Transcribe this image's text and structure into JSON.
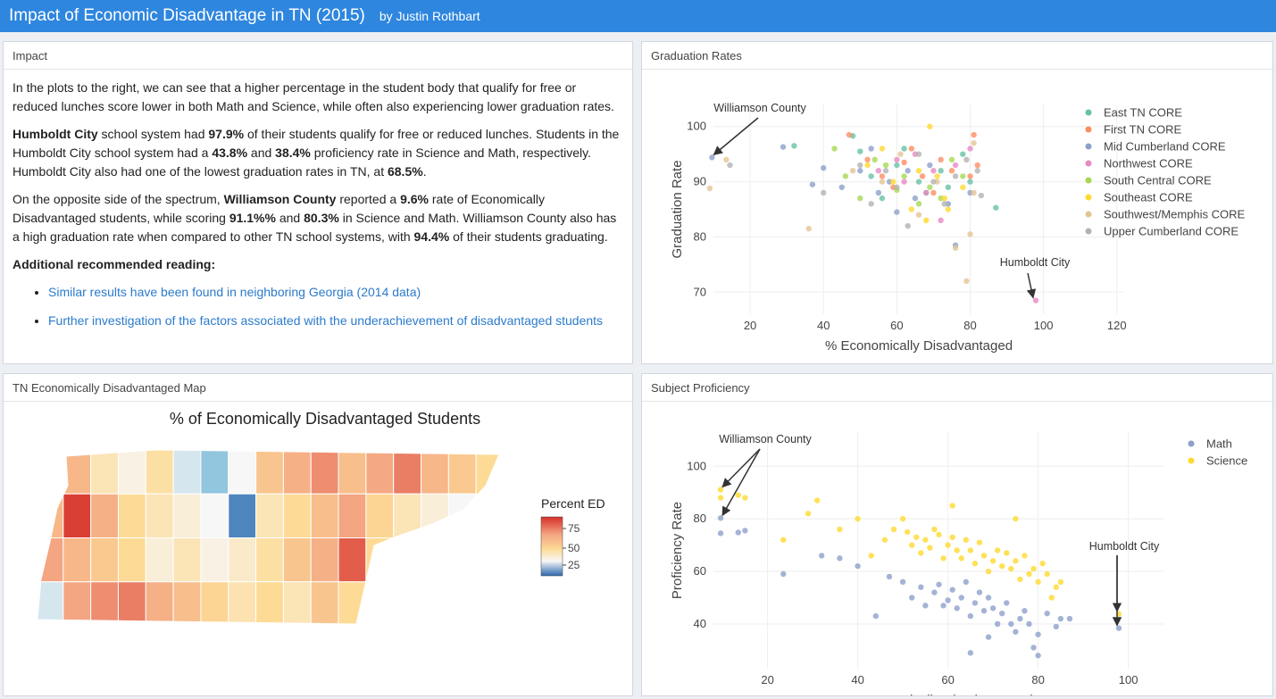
{
  "header": {
    "title": "Impact of Economic Disadvantage in TN (2015)",
    "author": "by Justin Rothbart"
  },
  "impact": {
    "title": "Impact",
    "p1": "In the plots to the right, we can see that a higher percentage in the student body that qualify for free or reduced lunches score lower in both Math and Science, while often also experiencing lower graduation rates.",
    "p2": [
      {
        "t": "Humboldt City",
        "b": true
      },
      {
        "t": " school system had ",
        "b": false
      },
      {
        "t": "97.9%",
        "b": true
      },
      {
        "t": " of their students qualify for free or reduced lunches. Students in the Humboldt City school system had a ",
        "b": false
      },
      {
        "t": "43.8%",
        "b": true
      },
      {
        "t": " and ",
        "b": false
      },
      {
        "t": "38.4%",
        "b": true
      },
      {
        "t": " proficiency rate in Science and Math, respectively. Humboldt City also had one of the lowest graduation rates in TN, at ",
        "b": false
      },
      {
        "t": "68.5%",
        "b": true
      },
      {
        "t": ".",
        "b": false
      }
    ],
    "p3": [
      {
        "t": "On the opposite side of the spectrum, ",
        "b": false
      },
      {
        "t": "Williamson County",
        "b": true
      },
      {
        "t": " reported a ",
        "b": false
      },
      {
        "t": "9.6%",
        "b": true
      },
      {
        "t": " rate of Economically Disadvantaged students, while scoring ",
        "b": false
      },
      {
        "t": "91.1%%",
        "b": true
      },
      {
        "t": " and ",
        "b": false
      },
      {
        "t": "80.3%",
        "b": true
      },
      {
        "t": " in Science and Math. Williamson County also has a high graduation rate when compared to other TN school systems, with ",
        "b": false
      },
      {
        "t": "94.4%",
        "b": true
      },
      {
        "t": " of their students graduating.",
        "b": false
      }
    ],
    "reading_title": "Additional recommended reading:",
    "links": [
      "Similar results have been found in neighboring Georgia (2014 data)",
      "Further investigation of the factors associated with the underachievement of disadvantaged students"
    ]
  },
  "grad": {
    "title": "Graduation Rates",
    "ann1": "Williamson County",
    "ann2": "Humboldt City"
  },
  "map": {
    "title": "TN Economically Disadvantaged Map",
    "chart_title": "% of Economically Disadvantaged Students",
    "legend_title": "Percent ED",
    "legend_ticks": [
      "75",
      "50",
      "25"
    ]
  },
  "prof": {
    "title": "Subject Proficiency",
    "ann1": "Williamson County",
    "ann2": "Humboldt City"
  },
  "chart_data": [
    {
      "type": "scatter",
      "xlabel": "% Economically Disadvantaged",
      "ylabel": "Graduation Rate",
      "xlim": [
        10,
        122
      ],
      "ylim": [
        66,
        104
      ],
      "xticks": [
        "20",
        "40",
        "60",
        "80",
        "100",
        "120"
      ],
      "yticks": [
        "70",
        "80",
        "90",
        "100"
      ],
      "grid": true,
      "legend_position": "right",
      "series": [
        {
          "name": "East TN CORE",
          "color": "#66c2a5",
          "points": [
            [
              32,
              96.5
            ],
            [
              48,
              98.3
            ],
            [
              50,
              95.5
            ],
            [
              53,
              91
            ],
            [
              56,
              87
            ],
            [
              60,
              93
            ],
            [
              62,
              96
            ],
            [
              66,
              90
            ],
            [
              68,
              88
            ],
            [
              72,
              92
            ],
            [
              74,
              89
            ],
            [
              78,
              95
            ],
            [
              80,
              90
            ],
            [
              87,
              85.3
            ]
          ]
        },
        {
          "name": "First TN CORE",
          "color": "#fc8d62",
          "points": [
            [
              47,
              98.5
            ],
            [
              52,
              94
            ],
            [
              56,
              91
            ],
            [
              59,
              89
            ],
            [
              62,
              93.5
            ],
            [
              64,
              96
            ],
            [
              67,
              91
            ],
            [
              70,
              88
            ],
            [
              72,
              94
            ],
            [
              75,
              92
            ],
            [
              80,
              91
            ],
            [
              81,
              98.5
            ],
            [
              82,
              93
            ]
          ]
        },
        {
          "name": "Mid Cumberland CORE",
          "color": "#8da0cb",
          "points": [
            [
              9.6,
              94.4
            ],
            [
              29,
              96.3
            ],
            [
              37,
              89.5
            ],
            [
              40,
              92.5
            ],
            [
              45,
              89
            ],
            [
              50,
              92
            ],
            [
              53,
              96
            ],
            [
              55,
              88
            ],
            [
              58,
              90
            ],
            [
              60,
              84.5
            ],
            [
              63,
              92
            ],
            [
              65,
              87
            ],
            [
              69,
              93
            ],
            [
              74,
              86
            ],
            [
              76,
              78.5
            ],
            [
              80,
              88
            ]
          ]
        },
        {
          "name": "Northwest CORE",
          "color": "#e78ac3",
          "points": [
            [
              55,
              92
            ],
            [
              60,
              94
            ],
            [
              62,
              90
            ],
            [
              65,
              95
            ],
            [
              68,
              88
            ],
            [
              70,
              92
            ],
            [
              72,
              83
            ],
            [
              76,
              93
            ],
            [
              80,
              96
            ],
            [
              97.9,
              68.5
            ]
          ]
        },
        {
          "name": "South Central CORE",
          "color": "#a6d854",
          "points": [
            [
              43,
              96
            ],
            [
              46,
              91
            ],
            [
              50,
              87
            ],
            [
              54,
              94
            ],
            [
              57,
              93
            ],
            [
              60,
              88.5
            ],
            [
              62,
              91
            ],
            [
              66,
              86
            ],
            [
              69,
              89
            ],
            [
              72,
              87
            ],
            [
              75,
              94
            ],
            [
              78,
              91
            ]
          ]
        },
        {
          "name": "Southeast CORE",
          "color": "#ffd92f",
          "points": [
            [
              52,
              93
            ],
            [
              56,
              96
            ],
            [
              59,
              90
            ],
            [
              64,
              85
            ],
            [
              66,
              92
            ],
            [
              68,
              83
            ],
            [
              69,
              100
            ],
            [
              71,
              91
            ],
            [
              73,
              87
            ],
            [
              74,
              85
            ],
            [
              78,
              89
            ]
          ]
        },
        {
          "name": "Southwest/Memphis CORE",
          "color": "#e5c494",
          "points": [
            [
              9,
              88.8
            ],
            [
              13.5,
              94
            ],
            [
              36,
              81.5
            ],
            [
              48,
              92
            ],
            [
              56,
              90
            ],
            [
              61,
              95
            ],
            [
              66,
              84
            ],
            [
              71,
              90
            ],
            [
              76,
              78
            ],
            [
              79,
              72
            ],
            [
              80,
              80.5
            ],
            [
              81,
              88
            ],
            [
              81,
              97
            ]
          ]
        },
        {
          "name": "Upper Cumberland CORE",
          "color": "#b3b3b3",
          "points": [
            [
              14.5,
              93
            ],
            [
              40,
              88
            ],
            [
              50,
              93
            ],
            [
              53,
              86
            ],
            [
              57,
              92
            ],
            [
              60,
              89
            ],
            [
              63,
              82
            ],
            [
              66,
              95
            ],
            [
              70,
              90
            ],
            [
              73,
              86
            ],
            [
              76,
              91
            ],
            [
              79,
              94
            ],
            [
              82,
              92
            ],
            [
              83,
              87.5
            ]
          ]
        }
      ]
    },
    {
      "type": "choropleth",
      "title": "% of Economically Disadvantaged Students",
      "legend_title": "Percent ED",
      "colorscale_ticks": [
        75,
        50,
        25
      ]
    },
    {
      "type": "scatter",
      "xlabel": "% Economically Disadvantaged",
      "ylabel": "Proficiency Rate",
      "xlim": [
        8,
        108
      ],
      "ylim": [
        23,
        113
      ],
      "xticks": [
        "20",
        "40",
        "60",
        "80",
        "100"
      ],
      "yticks": [
        "40",
        "60",
        "80",
        "100"
      ],
      "grid": true,
      "legend_position": "right",
      "series": [
        {
          "name": "Math",
          "color": "#8da0cb",
          "points": [
            [
              9.6,
              80.3
            ],
            [
              9.6,
              74.5
            ],
            [
              13.5,
              74.8
            ],
            [
              15,
              75.5
            ],
            [
              23.5,
              59
            ],
            [
              32,
              66
            ],
            [
              36,
              65
            ],
            [
              40,
              62
            ],
            [
              44,
              43
            ],
            [
              47,
              58
            ],
            [
              50,
              56
            ],
            [
              52,
              50
            ],
            [
              54,
              54
            ],
            [
              55,
              47
            ],
            [
              57,
              52
            ],
            [
              58,
              55
            ],
            [
              59,
              47
            ],
            [
              60,
              49
            ],
            [
              61,
              53
            ],
            [
              62,
              46
            ],
            [
              63,
              50
            ],
            [
              64,
              56
            ],
            [
              65,
              43
            ],
            [
              66,
              48
            ],
            [
              67,
              52
            ],
            [
              68,
              45
            ],
            [
              69,
              50
            ],
            [
              70,
              46
            ],
            [
              71,
              40
            ],
            [
              72,
              44
            ],
            [
              73,
              48
            ],
            [
              74,
              40
            ],
            [
              75,
              37
            ],
            [
              76,
              42
            ],
            [
              77,
              45
            ],
            [
              78,
              40
            ],
            [
              79,
              31
            ],
            [
              80,
              36
            ],
            [
              82,
              44
            ],
            [
              84,
              39
            ],
            [
              85,
              42
            ],
            [
              87,
              42
            ],
            [
              65,
              29
            ],
            [
              69,
              35
            ],
            [
              80,
              28
            ],
            [
              97.9,
              38.4
            ]
          ]
        },
        {
          "name": "Science",
          "color": "#ffd92f",
          "points": [
            [
              9.6,
              91.1
            ],
            [
              9.6,
              88
            ],
            [
              13.5,
              89
            ],
            [
              15,
              88
            ],
            [
              23.5,
              72
            ],
            [
              29,
              82
            ],
            [
              31,
              87
            ],
            [
              36,
              76
            ],
            [
              40,
              80
            ],
            [
              43,
              66
            ],
            [
              46,
              72
            ],
            [
              48,
              76
            ],
            [
              50,
              80
            ],
            [
              51,
              75
            ],
            [
              52,
              70
            ],
            [
              53,
              73
            ],
            [
              54,
              67
            ],
            [
              55,
              72
            ],
            [
              56,
              69
            ],
            [
              57,
              76
            ],
            [
              58,
              74
            ],
            [
              59,
              65
            ],
            [
              60,
              70
            ],
            [
              61,
              85
            ],
            [
              61,
              73
            ],
            [
              62,
              68
            ],
            [
              63,
              65
            ],
            [
              64,
              72
            ],
            [
              65,
              68
            ],
            [
              66,
              63
            ],
            [
              67,
              71
            ],
            [
              68,
              66
            ],
            [
              69,
              60
            ],
            [
              70,
              64
            ],
            [
              71,
              68
            ],
            [
              72,
              62
            ],
            [
              73,
              67
            ],
            [
              74,
              61
            ],
            [
              75,
              64
            ],
            [
              76,
              57
            ],
            [
              77,
              66
            ],
            [
              78,
              59
            ],
            [
              79,
              61
            ],
            [
              80,
              56
            ],
            [
              81,
              63
            ],
            [
              82,
              59
            ],
            [
              83,
              50
            ],
            [
              84,
              54
            ],
            [
              85,
              56
            ],
            [
              75,
              80
            ],
            [
              97.9,
              43.8
            ]
          ]
        }
      ]
    }
  ]
}
